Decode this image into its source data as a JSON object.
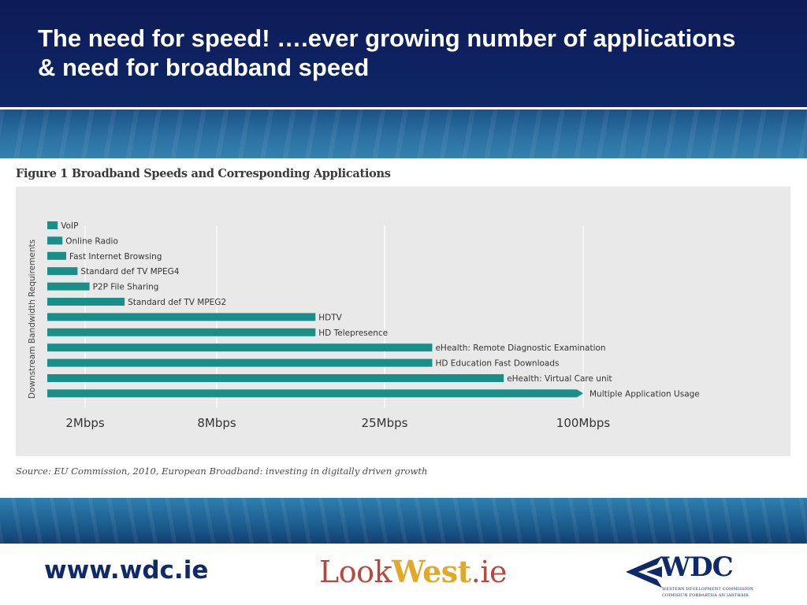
{
  "slide": {
    "title": "The need for speed! ….ever growing number of applications & need for broadband speed"
  },
  "figure": {
    "title": "Figure 1 Broadband Speeds and Corresponding Applications",
    "source": "Source: EU Commission, 2010, European Broadband: investing in digitally driven growth"
  },
  "chart_data": {
    "type": "bar",
    "orientation": "horizontal",
    "ylabel": "Downstream Bandwidth Requirements",
    "xlabel": "",
    "x_ticks": [
      "2Mbps",
      "8Mbps",
      "25Mbps",
      "100Mbps"
    ],
    "x_tick_values": [
      2,
      8,
      25,
      100
    ],
    "scale": "log",
    "grid": true,
    "categories": [
      "VoIP",
      "Online Radio",
      "Fast Internet Browsing",
      "Standard def TV MPEG4",
      "P2P File Sharing",
      "Standard def TV MPEG2",
      "HDTV",
      "HD Telepresence",
      "eHealth: Remote Diagnostic Examination",
      "HD Education Fast Downloads",
      "eHealth: Virtual Care unit",
      "Multiple Application Usage"
    ],
    "values": [
      0.55,
      0.8,
      1.0,
      1.6,
      2.2,
      3.8,
      18,
      18,
      43,
      43,
      70,
      100
    ],
    "bar_color": "#1a8f8a"
  },
  "footer": {
    "website": "www.wdc.ie",
    "lookwest_look": "Look",
    "lookwest_west": "West",
    "lookwest_ie": ".ie",
    "wdc_name": "WDC",
    "wdc_line1": "WESTERN DEVELOPMENT COMMISSION",
    "wdc_line2": "COIMISIÚN FORBARTHA AN IARTHAIR"
  },
  "colors": {
    "header_bg": "#0e2160",
    "brand_navy": "#0f2a6b",
    "lookwest_red": "#b5493d",
    "lookwest_gold": "#e2a82a"
  }
}
